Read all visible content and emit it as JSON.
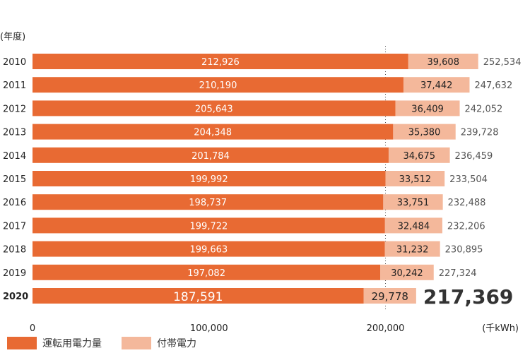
{
  "chart_data": {
    "type": "bar",
    "orientation": "horizontal",
    "stacked": true,
    "categories": [
      "2010",
      "2011",
      "2012",
      "2013",
      "2014",
      "2015",
      "2016",
      "2017",
      "2018",
      "2019",
      "2020"
    ],
    "highlight_category": "2020",
    "series": [
      {
        "name": "運転用電力量",
        "color": "#e86a33",
        "values": [
          212926,
          210190,
          205643,
          204348,
          201784,
          199992,
          198737,
          199722,
          199663,
          197082,
          187591
        ]
      },
      {
        "name": "付帯電力",
        "color": "#f4b89b",
        "values": [
          39608,
          37442,
          36409,
          35380,
          34675,
          33512,
          33751,
          32484,
          31232,
          30242,
          29778
        ]
      }
    ],
    "totals": [
      252534,
      247632,
      242052,
      239728,
      236459,
      233504,
      232488,
      232206,
      230895,
      227324,
      217369
    ],
    "xlim": [
      0,
      250000
    ],
    "x_ticks": [
      0,
      100000,
      200000
    ],
    "x_tick_labels": [
      "0",
      "100,000",
      "200,000"
    ],
    "x_unit": "(千kWh)",
    "y_unit": "(年度",
    "y_unit_suffix": ")",
    "gridline_at": 200000,
    "legend_placement": "bottom-left"
  }
}
